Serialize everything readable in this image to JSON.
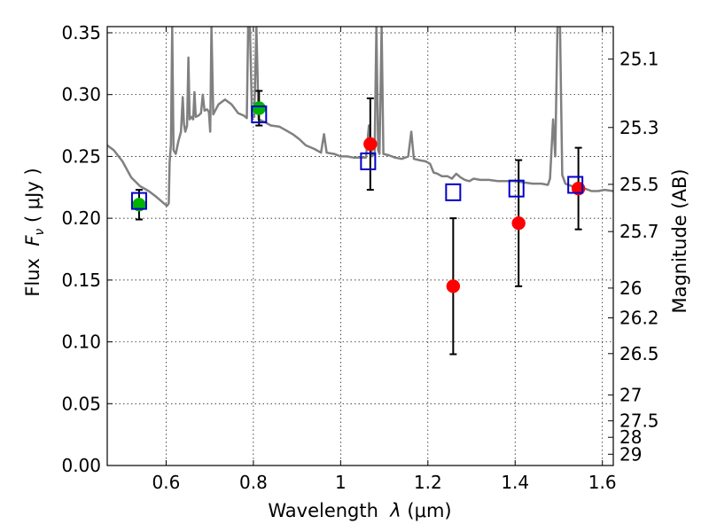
{
  "chart_data": {
    "type": "scatter",
    "xlabel_prefix": "Wavelength  ",
    "xlabel_symbol": "λ",
    "xlabel_unit": " (μm)",
    "ylabel_left_prefix": "Flux  ",
    "ylabel_left_symbol": "F",
    "ylabel_left_subscript": "ν",
    "ylabel_left_unit": "  ( μJy )",
    "ylabel_right": "Magnitude (AB)",
    "xlim": [
      0.465,
      1.625
    ],
    "ylim": [
      0.0,
      0.355
    ],
    "grid": true,
    "x_ticks": [
      {
        "value": 0.6,
        "label": "0.6"
      },
      {
        "value": 0.8,
        "label": "0.8"
      },
      {
        "value": 1.0,
        "label": "1"
      },
      {
        "value": 1.2,
        "label": "1.2"
      },
      {
        "value": 1.4,
        "label": "1.4"
      },
      {
        "value": 1.6,
        "label": "1.6"
      }
    ],
    "y_ticks": [
      {
        "value": 0.0,
        "label": "0.00"
      },
      {
        "value": 0.05,
        "label": "0.05"
      },
      {
        "value": 0.1,
        "label": "0.10"
      },
      {
        "value": 0.15,
        "label": "0.15"
      },
      {
        "value": 0.2,
        "label": "0.20"
      },
      {
        "value": 0.25,
        "label": "0.25"
      },
      {
        "value": 0.3,
        "label": "0.30"
      },
      {
        "value": 0.35,
        "label": "0.35"
      }
    ],
    "right_ticks": [
      {
        "label": "25.1",
        "flux": 0.3287
      },
      {
        "label": "25.3",
        "flux": 0.2734
      },
      {
        "label": "25.5",
        "flux": 0.2274
      },
      {
        "label": "25.7",
        "flux": 0.1892
      },
      {
        "label": "26",
        "flux": 0.1435
      },
      {
        "label": "26.2",
        "flux": 0.1194
      },
      {
        "label": "26.5",
        "flux": 0.0905
      },
      {
        "label": "27",
        "flux": 0.0571
      },
      {
        "label": "27.5",
        "flux": 0.0361
      },
      {
        "label": "28",
        "flux": 0.0228
      },
      {
        "label": "29",
        "flux": 0.0091
      }
    ],
    "series": [
      {
        "name": "observed-green",
        "color": "#00b400",
        "points": [
          {
            "x": 0.538,
            "y": 0.211,
            "err": 0.012
          },
          {
            "x": 0.813,
            "y": 0.289,
            "err": 0.014
          }
        ]
      },
      {
        "name": "observed-red",
        "color": "#ff0000",
        "points": [
          {
            "x": 1.068,
            "y": 0.26,
            "err": 0.037
          },
          {
            "x": 1.258,
            "y": 0.145,
            "err": 0.055
          },
          {
            "x": 1.408,
            "y": 0.196,
            "err": 0.051
          },
          {
            "x": 1.545,
            "y": 0.224,
            "err": 0.033
          }
        ]
      },
      {
        "name": "model-photometry",
        "color": "#0000cc",
        "marker": "open-square",
        "points": [
          {
            "x": 0.538,
            "y": 0.214
          },
          {
            "x": 0.813,
            "y": 0.284
          },
          {
            "x": 1.063,
            "y": 0.246
          },
          {
            "x": 1.258,
            "y": 0.221
          },
          {
            "x": 1.403,
            "y": 0.224
          },
          {
            "x": 1.538,
            "y": 0.227
          }
        ]
      }
    ],
    "model_spectrum": {
      "name": "template-sed",
      "color": "#808080",
      "points": [
        [
          0.465,
          0.259
        ],
        [
          0.48,
          0.255
        ],
        [
          0.5,
          0.246
        ],
        [
          0.52,
          0.233
        ],
        [
          0.54,
          0.226
        ],
        [
          0.56,
          0.222
        ],
        [
          0.575,
          0.218
        ],
        [
          0.585,
          0.215
        ],
        [
          0.595,
          0.212
        ],
        [
          0.602,
          0.21
        ],
        [
          0.606,
          0.212
        ],
        [
          0.608,
          0.245
        ],
        [
          0.611,
          0.26
        ],
        [
          0.614,
          0.355
        ],
        [
          0.617,
          0.255
        ],
        [
          0.622,
          0.252
        ],
        [
          0.628,
          0.262
        ],
        [
          0.634,
          0.27
        ],
        [
          0.638,
          0.298
        ],
        [
          0.641,
          0.276
        ],
        [
          0.644,
          0.27
        ],
        [
          0.648,
          0.275
        ],
        [
          0.651,
          0.33
        ],
        [
          0.654,
          0.28
        ],
        [
          0.658,
          0.282
        ],
        [
          0.662,
          0.28
        ],
        [
          0.665,
          0.302
        ],
        [
          0.668,
          0.282
        ],
        [
          0.674,
          0.283
        ],
        [
          0.68,
          0.285
        ],
        [
          0.684,
          0.3
        ],
        [
          0.688,
          0.287
        ],
        [
          0.694,
          0.288
        ],
        [
          0.698,
          0.286
        ],
        [
          0.701,
          0.27
        ],
        [
          0.704,
          0.355
        ],
        [
          0.708,
          0.284
        ],
        [
          0.72,
          0.292
        ],
        [
          0.735,
          0.296
        ],
        [
          0.75,
          0.292
        ],
        [
          0.765,
          0.285
        ],
        [
          0.778,
          0.283
        ],
        [
          0.785,
          0.281
        ],
        [
          0.788,
          0.355
        ],
        [
          0.792,
          0.355
        ],
        [
          0.797,
          0.282
        ],
        [
          0.802,
          0.282
        ],
        [
          0.807,
          0.355
        ],
        [
          0.812,
          0.28
        ],
        [
          0.825,
          0.278
        ],
        [
          0.84,
          0.275
        ],
        [
          0.86,
          0.274
        ],
        [
          0.875,
          0.271
        ],
        [
          0.89,
          0.268
        ],
        [
          0.905,
          0.264
        ],
        [
          0.92,
          0.259
        ],
        [
          0.94,
          0.256
        ],
        [
          0.955,
          0.253
        ],
        [
          0.962,
          0.268
        ],
        [
          0.968,
          0.253
        ],
        [
          0.985,
          0.252
        ],
        [
          1.0,
          0.25
        ],
        [
          1.015,
          0.25
        ],
        [
          1.03,
          0.249
        ],
        [
          1.045,
          0.249
        ],
        [
          1.058,
          0.249
        ],
        [
          1.065,
          0.275
        ],
        [
          1.072,
          0.25
        ],
        [
          1.078,
          0.252
        ],
        [
          1.082,
          0.355
        ],
        [
          1.086,
          0.255
        ],
        [
          1.089,
          0.252
        ],
        [
          1.094,
          0.355
        ],
        [
          1.098,
          0.252
        ],
        [
          1.11,
          0.251
        ],
        [
          1.125,
          0.249
        ],
        [
          1.14,
          0.248
        ],
        [
          1.155,
          0.25
        ],
        [
          1.162,
          0.27
        ],
        [
          1.168,
          0.248
        ],
        [
          1.18,
          0.247
        ],
        [
          1.195,
          0.246
        ],
        [
          1.205,
          0.244
        ],
        [
          1.213,
          0.237
        ],
        [
          1.222,
          0.236
        ],
        [
          1.232,
          0.234
        ],
        [
          1.245,
          0.234
        ],
        [
          1.255,
          0.232
        ],
        [
          1.265,
          0.236
        ],
        [
          1.275,
          0.233
        ],
        [
          1.285,
          0.231
        ],
        [
          1.295,
          0.23
        ],
        [
          1.305,
          0.232
        ],
        [
          1.32,
          0.231
        ],
        [
          1.34,
          0.231
        ],
        [
          1.36,
          0.23
        ],
        [
          1.38,
          0.23
        ],
        [
          1.4,
          0.23
        ],
        [
          1.42,
          0.229
        ],
        [
          1.44,
          0.228
        ],
        [
          1.46,
          0.228
        ],
        [
          1.475,
          0.227
        ],
        [
          1.48,
          0.232
        ],
        [
          1.487,
          0.28
        ],
        [
          1.492,
          0.25
        ],
        [
          1.497,
          0.355
        ],
        [
          1.503,
          0.355
        ],
        [
          1.508,
          0.235
        ],
        [
          1.515,
          0.228
        ],
        [
          1.53,
          0.226
        ],
        [
          1.545,
          0.225
        ],
        [
          1.56,
          0.224
        ],
        [
          1.575,
          0.222
        ],
        [
          1.59,
          0.222
        ],
        [
          1.605,
          0.223
        ],
        [
          1.625,
          0.222
        ]
      ]
    }
  }
}
